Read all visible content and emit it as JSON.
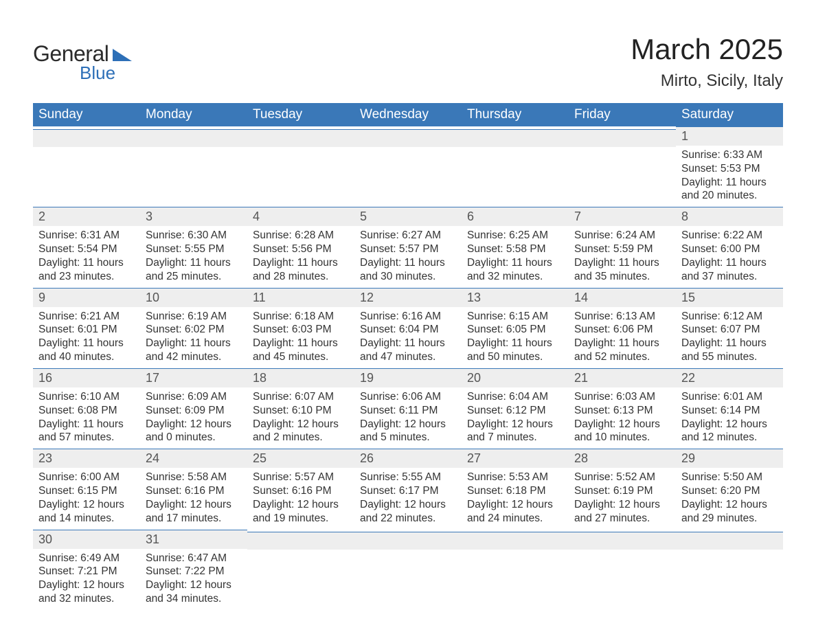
{
  "brand": {
    "name_part1": "General",
    "name_part2": "Blue",
    "color_primary": "#2d6fb7",
    "color_text": "#2b2b2b"
  },
  "title": "March 2025",
  "location": "Mirto, Sicily, Italy",
  "colors": {
    "header_bg": "#3a78b8",
    "header_text": "#ffffff",
    "daynum_bg": "#eeeeee",
    "daynum_text": "#555555",
    "body_text": "#333333",
    "row_border": "#3a78b8",
    "page_bg": "#ffffff"
  },
  "typography": {
    "title_fontsize": 42,
    "location_fontsize": 24,
    "header_fontsize": 19,
    "daynum_fontsize": 18,
    "body_fontsize": 15.5,
    "font_family": "Arial"
  },
  "weekdays": [
    "Sunday",
    "Monday",
    "Tuesday",
    "Wednesday",
    "Thursday",
    "Friday",
    "Saturday"
  ],
  "start_weekday_index": 6,
  "days": [
    {
      "n": 1,
      "sunrise": "6:33 AM",
      "sunset": "5:53 PM",
      "daylight": "11 hours and 20 minutes."
    },
    {
      "n": 2,
      "sunrise": "6:31 AM",
      "sunset": "5:54 PM",
      "daylight": "11 hours and 23 minutes."
    },
    {
      "n": 3,
      "sunrise": "6:30 AM",
      "sunset": "5:55 PM",
      "daylight": "11 hours and 25 minutes."
    },
    {
      "n": 4,
      "sunrise": "6:28 AM",
      "sunset": "5:56 PM",
      "daylight": "11 hours and 28 minutes."
    },
    {
      "n": 5,
      "sunrise": "6:27 AM",
      "sunset": "5:57 PM",
      "daylight": "11 hours and 30 minutes."
    },
    {
      "n": 6,
      "sunrise": "6:25 AM",
      "sunset": "5:58 PM",
      "daylight": "11 hours and 32 minutes."
    },
    {
      "n": 7,
      "sunrise": "6:24 AM",
      "sunset": "5:59 PM",
      "daylight": "11 hours and 35 minutes."
    },
    {
      "n": 8,
      "sunrise": "6:22 AM",
      "sunset": "6:00 PM",
      "daylight": "11 hours and 37 minutes."
    },
    {
      "n": 9,
      "sunrise": "6:21 AM",
      "sunset": "6:01 PM",
      "daylight": "11 hours and 40 minutes."
    },
    {
      "n": 10,
      "sunrise": "6:19 AM",
      "sunset": "6:02 PM",
      "daylight": "11 hours and 42 minutes."
    },
    {
      "n": 11,
      "sunrise": "6:18 AM",
      "sunset": "6:03 PM",
      "daylight": "11 hours and 45 minutes."
    },
    {
      "n": 12,
      "sunrise": "6:16 AM",
      "sunset": "6:04 PM",
      "daylight": "11 hours and 47 minutes."
    },
    {
      "n": 13,
      "sunrise": "6:15 AM",
      "sunset": "6:05 PM",
      "daylight": "11 hours and 50 minutes."
    },
    {
      "n": 14,
      "sunrise": "6:13 AM",
      "sunset": "6:06 PM",
      "daylight": "11 hours and 52 minutes."
    },
    {
      "n": 15,
      "sunrise": "6:12 AM",
      "sunset": "6:07 PM",
      "daylight": "11 hours and 55 minutes."
    },
    {
      "n": 16,
      "sunrise": "6:10 AM",
      "sunset": "6:08 PM",
      "daylight": "11 hours and 57 minutes."
    },
    {
      "n": 17,
      "sunrise": "6:09 AM",
      "sunset": "6:09 PM",
      "daylight": "12 hours and 0 minutes."
    },
    {
      "n": 18,
      "sunrise": "6:07 AM",
      "sunset": "6:10 PM",
      "daylight": "12 hours and 2 minutes."
    },
    {
      "n": 19,
      "sunrise": "6:06 AM",
      "sunset": "6:11 PM",
      "daylight": "12 hours and 5 minutes."
    },
    {
      "n": 20,
      "sunrise": "6:04 AM",
      "sunset": "6:12 PM",
      "daylight": "12 hours and 7 minutes."
    },
    {
      "n": 21,
      "sunrise": "6:03 AM",
      "sunset": "6:13 PM",
      "daylight": "12 hours and 10 minutes."
    },
    {
      "n": 22,
      "sunrise": "6:01 AM",
      "sunset": "6:14 PM",
      "daylight": "12 hours and 12 minutes."
    },
    {
      "n": 23,
      "sunrise": "6:00 AM",
      "sunset": "6:15 PM",
      "daylight": "12 hours and 14 minutes."
    },
    {
      "n": 24,
      "sunrise": "5:58 AM",
      "sunset": "6:16 PM",
      "daylight": "12 hours and 17 minutes."
    },
    {
      "n": 25,
      "sunrise": "5:57 AM",
      "sunset": "6:16 PM",
      "daylight": "12 hours and 19 minutes."
    },
    {
      "n": 26,
      "sunrise": "5:55 AM",
      "sunset": "6:17 PM",
      "daylight": "12 hours and 22 minutes."
    },
    {
      "n": 27,
      "sunrise": "5:53 AM",
      "sunset": "6:18 PM",
      "daylight": "12 hours and 24 minutes."
    },
    {
      "n": 28,
      "sunrise": "5:52 AM",
      "sunset": "6:19 PM",
      "daylight": "12 hours and 27 minutes."
    },
    {
      "n": 29,
      "sunrise": "5:50 AM",
      "sunset": "6:20 PM",
      "daylight": "12 hours and 29 minutes."
    },
    {
      "n": 30,
      "sunrise": "6:49 AM",
      "sunset": "7:21 PM",
      "daylight": "12 hours and 32 minutes."
    },
    {
      "n": 31,
      "sunrise": "6:47 AM",
      "sunset": "7:22 PM",
      "daylight": "12 hours and 34 minutes."
    }
  ],
  "labels": {
    "sunrise": "Sunrise:",
    "sunset": "Sunset:",
    "daylight": "Daylight:"
  }
}
